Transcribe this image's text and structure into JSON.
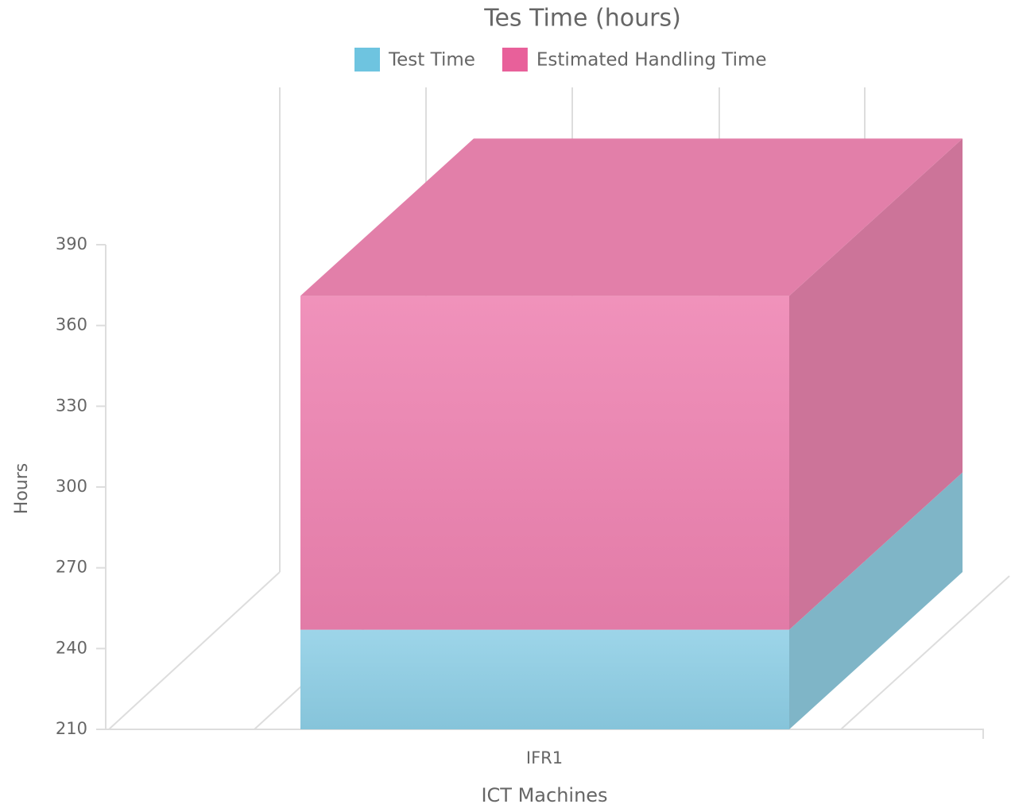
{
  "chart_data": {
    "type": "bar3d-stacked",
    "title": "Tes Time (hours)",
    "x_label": "ICT Machines",
    "y_label": "Hours",
    "categories": [
      "IFR1"
    ],
    "series": [
      {
        "name": "Test Time",
        "color": "#6ec4e0",
        "values": [
          247
        ]
      },
      {
        "name": "Estimated Handling Time",
        "color": "#e8609a",
        "values": [
          124
        ]
      }
    ],
    "ylim": [
      210,
      390
    ],
    "yticks": [
      210,
      240,
      270,
      300,
      330,
      360,
      390
    ],
    "legend": "top"
  }
}
